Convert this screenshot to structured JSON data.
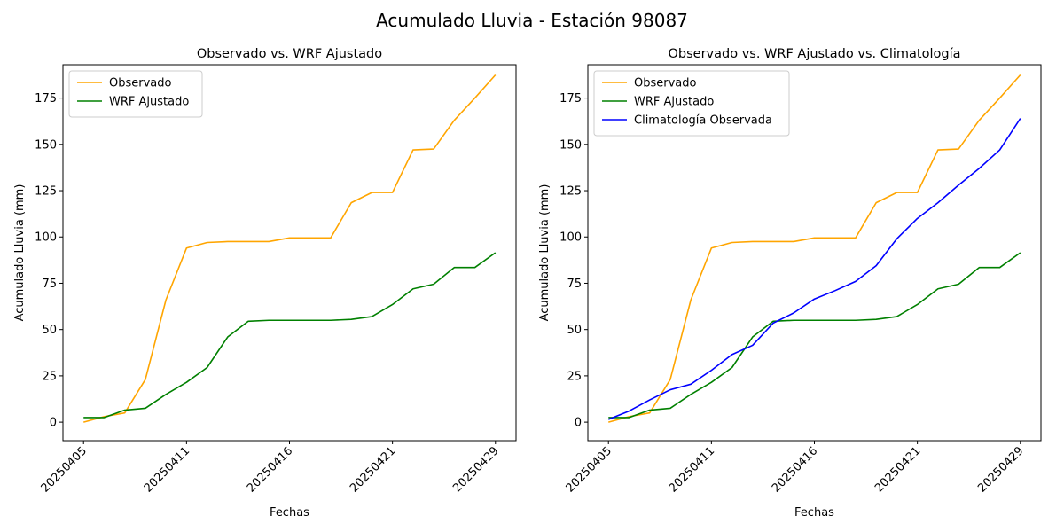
{
  "figure": {
    "title": "Acumulado Lluvia - Estación 98087"
  },
  "chart_data": [
    {
      "type": "line",
      "title": "Observado vs. WRF Ajustado",
      "xlabel": "Fechas",
      "ylabel": "Acumulado Lluvia (mm)",
      "x": [
        0,
        1,
        2,
        3,
        4,
        5,
        6,
        7,
        8,
        9,
        10,
        11,
        12,
        13,
        14,
        15,
        16,
        17,
        18,
        19,
        20
      ],
      "xtick_labels": [
        "20250405",
        "20250411",
        "20250416",
        "20250421",
        "20250429"
      ],
      "xtick_positions": [
        0,
        5,
        10,
        15,
        20
      ],
      "ylim": [
        -10,
        193
      ],
      "yticks": [
        0,
        25,
        50,
        75,
        100,
        125,
        150,
        175
      ],
      "grid": false,
      "legend_position": "top-left",
      "series": [
        {
          "name": "Observado",
          "color": "#FFA500",
          "values": [
            0,
            3,
            5,
            23,
            66,
            94,
            97,
            97.5,
            97.5,
            97.5,
            99.5,
            99.5,
            99.5,
            118.5,
            124,
            124,
            147,
            147.5,
            163,
            175,
            187.5
          ]
        },
        {
          "name": "WRF Ajustado",
          "color": "#008000",
          "values": [
            2.5,
            2.5,
            6.5,
            7.5,
            15,
            21.5,
            29.5,
            46,
            54.5,
            55,
            55,
            55,
            55,
            55.5,
            57,
            63.5,
            72,
            74.5,
            83.5,
            83.5,
            91.5
          ]
        }
      ]
    },
    {
      "type": "line",
      "title": "Observado vs. WRF Ajustado vs. Climatología",
      "xlabel": "Fechas",
      "ylabel": "Acumulado Lluvia (mm)",
      "x": [
        0,
        1,
        2,
        3,
        4,
        5,
        6,
        7,
        8,
        9,
        10,
        11,
        12,
        13,
        14,
        15,
        16,
        17,
        18,
        19,
        20
      ],
      "xtick_labels": [
        "20250405",
        "20250411",
        "20250416",
        "20250421",
        "20250429"
      ],
      "xtick_positions": [
        0,
        5,
        10,
        15,
        20
      ],
      "ylim": [
        -10,
        193
      ],
      "yticks": [
        0,
        25,
        50,
        75,
        100,
        125,
        150,
        175
      ],
      "grid": false,
      "legend_position": "top-left",
      "series": [
        {
          "name": "Observado",
          "color": "#FFA500",
          "values": [
            0,
            3,
            5,
            23,
            66,
            94,
            97,
            97.5,
            97.5,
            97.5,
            99.5,
            99.5,
            99.5,
            118.5,
            124,
            124,
            147,
            147.5,
            163,
            175,
            187.5
          ]
        },
        {
          "name": "WRF Ajustado",
          "color": "#008000",
          "values": [
            2.5,
            2.5,
            6.5,
            7.5,
            15,
            21.5,
            29.5,
            46,
            54.5,
            55,
            55,
            55,
            55,
            55.5,
            57,
            63.5,
            72,
            74.5,
            83.5,
            83.5,
            91.5
          ]
        },
        {
          "name": "Climatología Observada",
          "color": "#0000FF",
          "values": [
            1.5,
            6,
            12,
            17.5,
            20.5,
            28,
            36.5,
            41.5,
            53.5,
            59,
            66.5,
            71,
            76,
            84.5,
            99,
            110,
            118.5,
            128,
            137,
            147,
            164
          ]
        }
      ]
    }
  ]
}
